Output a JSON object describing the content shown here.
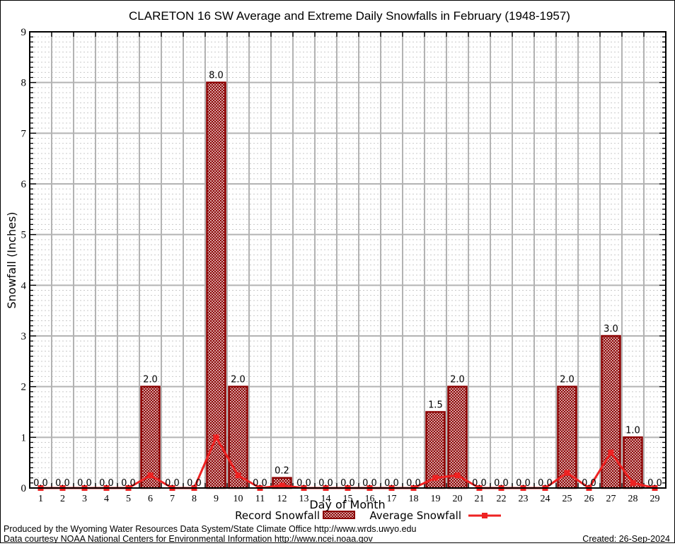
{
  "title": "CLARETON 16 SW Average and Extreme Daily Snowfalls in February (1948-1957)",
  "legend": {
    "record_label": "Record Snowfall",
    "average_label": "Average Snowfall"
  },
  "footer": {
    "line1": "Produced by the Wyoming Water Resources Data System/State Climate Office http://www.wrds.uwyo.edu",
    "line2": "Data courtesy NOAA National Centers for Environmental Information http://www.ncei.noaa.gov",
    "created": "Created: 26-Sep-2024"
  },
  "colors": {
    "bar_border": "#8b0000",
    "bar_hatch": "#8b0000",
    "bar_background": "#ffffff",
    "average_line": "#ee2222",
    "major_grid": "#b3b3b3",
    "minor_grid": "#c9c9c9",
    "axis": "#000000",
    "background": "#ffffff"
  },
  "chart_data": {
    "type": "bar",
    "title": "CLARETON 16 SW Average and Extreme Daily Snowfalls in February (1948-1957)",
    "xlabel": "Day of Month",
    "ylabel": "Snowfall (Inches)",
    "ylim": [
      0,
      9
    ],
    "y_major_step": 1,
    "y_minor_step": 0.1,
    "grid": "major solid + minor dashed horizontal, solid vertical per day",
    "legend_position": "bottom",
    "categories": [
      1,
      2,
      3,
      4,
      5,
      6,
      7,
      8,
      9,
      10,
      11,
      12,
      13,
      14,
      15,
      16,
      17,
      18,
      19,
      20,
      21,
      22,
      23,
      24,
      25,
      26,
      27,
      28,
      29
    ],
    "series": [
      {
        "name": "Record Snowfall",
        "type": "bar",
        "values": [
          0.0,
          0.0,
          0.0,
          0.0,
          0.0,
          2.0,
          0.0,
          0.0,
          8.0,
          2.0,
          0.0,
          0.2,
          0.0,
          0.0,
          0.0,
          0.0,
          0.0,
          0.0,
          1.5,
          2.0,
          0.0,
          0.0,
          0.0,
          0.0,
          2.0,
          0.0,
          3.0,
          1.0,
          0.0
        ],
        "value_labels": [
          "0.0",
          "0.0",
          "0.0",
          "0.0",
          "0.0",
          "2.0",
          "0.0",
          "0.0",
          "8.0",
          "2.0",
          "0.0",
          "0.2",
          "0.0",
          "0.0",
          "0.0",
          "0.0",
          "0.0",
          "0.0",
          "1.5",
          "2.0",
          "0.0",
          "0.0",
          "0.0",
          "0.0",
          "2.0",
          "0.0",
          "3.0",
          "1.0",
          "0.0"
        ]
      },
      {
        "name": "Average Snowfall",
        "type": "line",
        "values": [
          0,
          0,
          0,
          0,
          0,
          0.25,
          0,
          0,
          1.0,
          0.25,
          0,
          0.05,
          0,
          0,
          0,
          0,
          0,
          0,
          0.2,
          0.25,
          0,
          0,
          0,
          0,
          0.3,
          0,
          0.7,
          0.1,
          0
        ]
      }
    ]
  }
}
